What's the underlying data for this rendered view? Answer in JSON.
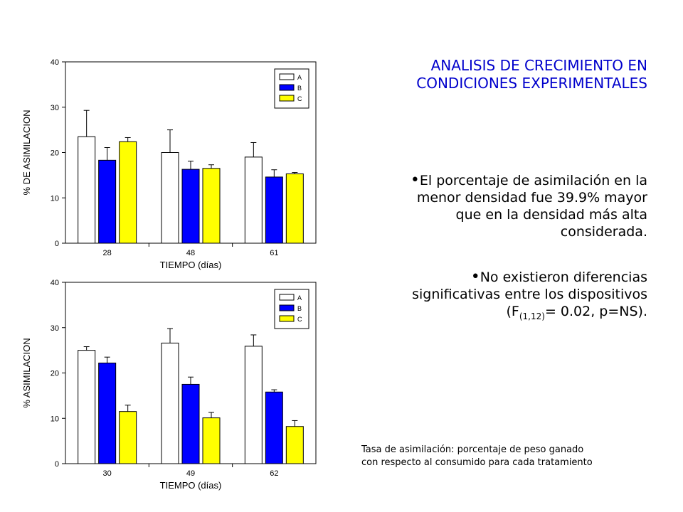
{
  "heading": {
    "line1": "ANALISIS DE CRECIMIENTO EN",
    "line2": "CONDICIONES EXPERIMENTALES"
  },
  "bullets": [
    {
      "lines": [
        "El porcentaje de asimilación en la",
        "menor densidad fue 39.9% mayor",
        "que en la densidad más alta",
        "considerada."
      ]
    },
    {
      "line1": "No existieron diferencias",
      "line2": "significativas entre los dispositivos",
      "stat_open": "(F",
      "stat_sub": "(1,12)",
      "stat_close": "= 0.02, p=NS)."
    }
  ],
  "footnote": {
    "line1": "Tasa de asimilación: porcentaje de peso ganado",
    "line2": "con respecto al consumido para cada tratamiento"
  },
  "colors": {
    "A": "#ffffff",
    "B": "#0000ff",
    "C": "#ffff00",
    "heading": "#0000cc"
  },
  "chart_data": [
    {
      "type": "bar",
      "categories": [
        "28",
        "48",
        "61"
      ],
      "series": [
        {
          "name": "A",
          "values": [
            23.5,
            20.0,
            19.0
          ],
          "errors": [
            5.8,
            5.0,
            3.2
          ]
        },
        {
          "name": "B",
          "values": [
            18.3,
            16.3,
            14.6
          ],
          "errors": [
            2.8,
            1.8,
            1.6
          ]
        },
        {
          "name": "C",
          "values": [
            22.4,
            16.5,
            15.3
          ],
          "errors": [
            0.9,
            0.8,
            0.3
          ]
        }
      ],
      "xlabel": "TIEMPO (días)",
      "ylabel": "% DE ASIMILACION",
      "ylim": [
        0,
        40
      ],
      "yticks": [
        0,
        10,
        20,
        30,
        40
      ],
      "grid": false,
      "legend": "top-right"
    },
    {
      "type": "bar",
      "categories": [
        "30",
        "49",
        "62"
      ],
      "series": [
        {
          "name": "A",
          "values": [
            25.0,
            26.6,
            25.9
          ],
          "errors": [
            0.8,
            3.2,
            2.5
          ]
        },
        {
          "name": "B",
          "values": [
            22.2,
            17.5,
            15.8
          ],
          "errors": [
            1.3,
            1.6,
            0.5
          ]
        },
        {
          "name": "C",
          "values": [
            11.5,
            10.1,
            8.2
          ],
          "errors": [
            1.4,
            1.2,
            1.3
          ]
        }
      ],
      "xlabel": "TIEMPO (días)",
      "ylabel": "% ASIMILACION",
      "ylim": [
        0,
        40
      ],
      "yticks": [
        0,
        10,
        20,
        30,
        40
      ],
      "grid": false,
      "legend": "top-right"
    }
  ]
}
